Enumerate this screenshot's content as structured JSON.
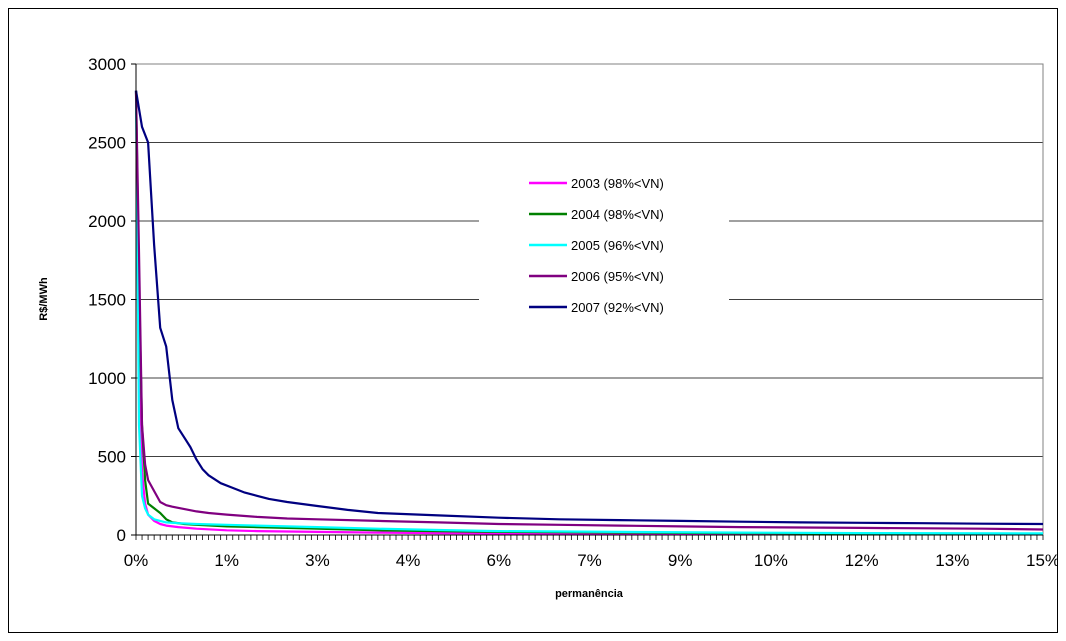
{
  "chart_data": {
    "type": "line",
    "title": "",
    "xlabel": "permanência",
    "ylabel": "R$/MWh",
    "x_tick_labels": [
      "0%",
      "1%",
      "3%",
      "4%",
      "6%",
      "7%",
      "9%",
      "10%",
      "12%",
      "13%",
      "15%"
    ],
    "x_ticks": [
      0,
      1.5,
      3,
      4.5,
      6,
      7.5,
      9,
      10.5,
      12,
      13.5,
      15
    ],
    "xlim": [
      0,
      15
    ],
    "yticks": [
      0,
      500,
      1000,
      1500,
      2000,
      2500,
      3000
    ],
    "ylim": [
      0,
      3000
    ],
    "grid": "horizontal",
    "legend_position": "center-right",
    "series": [
      {
        "name": "2003 (98%<VN)",
        "color": "#FF00FF",
        "x": [
          0,
          0.05,
          0.1,
          0.15,
          0.2,
          0.3,
          0.4,
          0.5,
          0.7,
          1,
          1.5,
          2,
          3,
          4,
          5,
          6,
          8,
          10,
          12,
          15
        ],
        "values": [
          2830,
          1200,
          400,
          200,
          130,
          90,
          70,
          60,
          50,
          40,
          30,
          25,
          20,
          15,
          12,
          10,
          8,
          6,
          5,
          4
        ]
      },
      {
        "name": "2004 (98%<VN)",
        "color": "#008000",
        "x": [
          0,
          0.05,
          0.1,
          0.15,
          0.2,
          0.3,
          0.4,
          0.5,
          0.6,
          0.8,
          1,
          1.5,
          2,
          3,
          4,
          5,
          6,
          8,
          10,
          12,
          13,
          15
        ],
        "values": [
          2830,
          1600,
          700,
          350,
          200,
          170,
          140,
          100,
          80,
          70,
          65,
          55,
          50,
          40,
          30,
          25,
          20,
          15,
          12,
          8,
          6,
          5
        ]
      },
      {
        "name": "2005 (96%<VN)",
        "color": "#00FFFF",
        "x": [
          0,
          0.05,
          0.1,
          0.15,
          0.2,
          0.3,
          0.4,
          0.5,
          0.7,
          1,
          1.5,
          2,
          3,
          4,
          5,
          6,
          8,
          10,
          12,
          15
        ],
        "values": [
          2830,
          700,
          250,
          170,
          130,
          100,
          90,
          80,
          75,
          70,
          65,
          60,
          50,
          40,
          32,
          25,
          20,
          15,
          12,
          10
        ]
      },
      {
        "name": "2006 (95%<VN)",
        "color": "#800080",
        "x": [
          0,
          0.05,
          0.1,
          0.15,
          0.2,
          0.3,
          0.4,
          0.5,
          0.6,
          0.8,
          1,
          1.2,
          1.5,
          2,
          2.5,
          3,
          4,
          5,
          6,
          7,
          8,
          9,
          10,
          12,
          14,
          15
        ],
        "values": [
          2830,
          1800,
          700,
          450,
          350,
          280,
          210,
          190,
          180,
          165,
          150,
          140,
          130,
          115,
          105,
          100,
          90,
          80,
          70,
          65,
          60,
          55,
          50,
          45,
          40,
          35
        ]
      },
      {
        "name": "2007 (92%<VN)",
        "color": "#000080",
        "x": [
          0,
          0.1,
          0.2,
          0.3,
          0.4,
          0.5,
          0.6,
          0.7,
          0.8,
          0.9,
          1,
          1.1,
          1.2,
          1.4,
          1.6,
          1.8,
          2,
          2.2,
          2.5,
          3,
          3.5,
          4,
          5,
          6,
          7,
          8,
          9,
          10,
          11,
          12,
          13,
          14,
          15
        ],
        "values": [
          2830,
          2600,
          2500,
          1850,
          1320,
          1200,
          860,
          680,
          620,
          560,
          480,
          420,
          380,
          330,
          300,
          270,
          250,
          230,
          210,
          185,
          160,
          140,
          125,
          110,
          100,
          95,
          90,
          85,
          80,
          78,
          75,
          72,
          70
        ]
      }
    ]
  }
}
